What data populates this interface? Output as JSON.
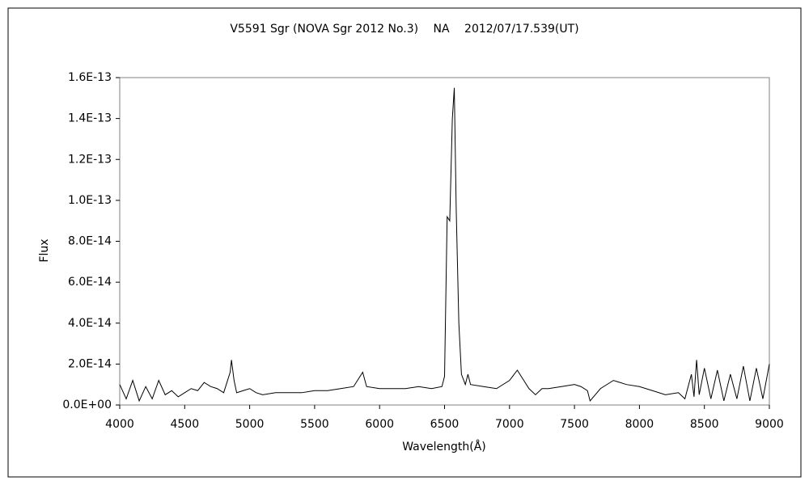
{
  "chart_data": {
    "type": "line",
    "title": "V5591 Sgr (NOVA Sgr 2012 No.3)　 NA　 2012/07/17.539(UT)",
    "x_label": "Wavelength(Å)",
    "y_label": "Flux",
    "color": "#000000",
    "x": [
      4000,
      4050,
      4100,
      4150,
      4200,
      4250,
      4300,
      4350,
      4400,
      4450,
      4500,
      4550,
      4600,
      4650,
      4700,
      4750,
      4800,
      4850,
      4860,
      4880,
      4900,
      4950,
      5000,
      5050,
      5100,
      5200,
      5300,
      5400,
      5500,
      5600,
      5700,
      5800,
      5870,
      5900,
      6000,
      6100,
      6200,
      6300,
      6400,
      6480,
      6500,
      6520,
      6540,
      6560,
      6575,
      6590,
      6610,
      6630,
      6660,
      6680,
      6700,
      6800,
      6900,
      7000,
      7060,
      7100,
      7150,
      7200,
      7250,
      7300,
      7400,
      7500,
      7550,
      7600,
      7620,
      7700,
      7800,
      7900,
      8000,
      8100,
      8200,
      8300,
      8350,
      8400,
      8420,
      8440,
      8460,
      8500,
      8550,
      8600,
      8650,
      8700,
      8750,
      8800,
      8850,
      8900,
      8950,
      9000
    ],
    "values": [
      1e-14,
      3e-15,
      1.2e-14,
      2e-15,
      9e-15,
      3e-15,
      1.2e-14,
      5e-15,
      7e-15,
      4e-15,
      6e-15,
      8e-15,
      7e-15,
      1.1e-14,
      9e-15,
      8e-15,
      6e-15,
      1.6e-14,
      2.2e-14,
      1.2e-14,
      6e-15,
      7e-15,
      8e-15,
      6e-15,
      5e-15,
      6e-15,
      6e-15,
      6e-15,
      7e-15,
      7e-15,
      8e-15,
      9e-15,
      1.6e-14,
      9e-15,
      8e-15,
      8e-15,
      8e-15,
      9e-15,
      8e-15,
      9e-15,
      1.4e-14,
      9.2e-14,
      9e-14,
      1.4e-13,
      1.55e-13,
      9.5e-14,
      4e-14,
      1.5e-14,
      1e-14,
      1.5e-14,
      1e-14,
      9e-15,
      8e-15,
      1.2e-14,
      1.7e-14,
      1.3e-14,
      8e-15,
      5e-15,
      8e-15,
      8e-15,
      9e-15,
      1e-14,
      9e-15,
      7e-15,
      2e-15,
      8e-15,
      1.2e-14,
      1e-14,
      9e-15,
      7e-15,
      5e-15,
      6e-15,
      3e-15,
      1.5e-14,
      4e-15,
      2.2e-14,
      5e-15,
      1.8e-14,
      3e-15,
      1.7e-14,
      2e-15,
      1.5e-14,
      3e-15,
      1.9e-14,
      2e-15,
      1.8e-14,
      3e-15,
      2e-14
    ],
    "xlim": [
      4000,
      9000
    ],
    "xticks": [
      4000,
      4500,
      5000,
      5500,
      6000,
      6500,
      7000,
      7500,
      8000,
      8500,
      9000
    ],
    "ylim": [
      0,
      1.6e-13
    ],
    "yticks": [
      {
        "value": 0,
        "label": "0.0E+00"
      },
      {
        "value": 2e-14,
        "label": "2.0E-14"
      },
      {
        "value": 4e-14,
        "label": "4.0E-14"
      },
      {
        "value": 6e-14,
        "label": "6.0E-14"
      },
      {
        "value": 8e-14,
        "label": "8.0E-14"
      },
      {
        "value": 1e-13,
        "label": "1.0E-13"
      },
      {
        "value": 1.2e-13,
        "label": "1.2E-13"
      },
      {
        "value": 1.4e-13,
        "label": "1.4E-13"
      },
      {
        "value": 1.6e-13,
        "label": "1.6E-13"
      }
    ],
    "grid": false
  }
}
